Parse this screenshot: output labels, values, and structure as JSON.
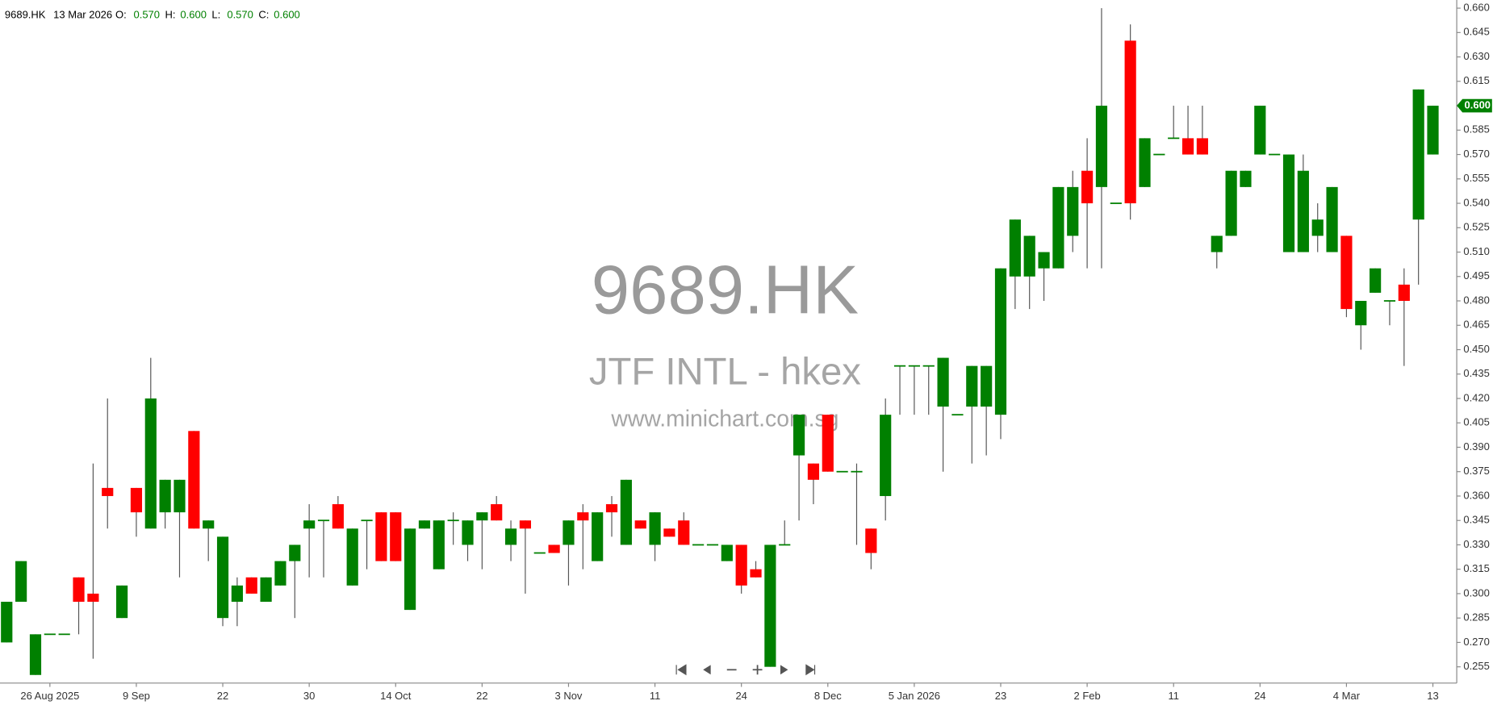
{
  "chart_data": {
    "type": "candlestick",
    "header": {
      "symbol": "9689.HK",
      "date": "13 Mar 2026",
      "fields": [
        {
          "label": "O:",
          "value": "0.570"
        },
        {
          "label": "H:",
          "value": "0.600"
        },
        {
          "label": "L:",
          "value": "0.570"
        },
        {
          "label": "C:",
          "value": "0.600"
        }
      ]
    },
    "watermark": {
      "symbol": "9689.HK",
      "name": "JTF INTL - hkex",
      "site": "www.minichart.com.sg"
    },
    "up_color": "#008000",
    "down_color": "#ff0000",
    "wick_color": "#555555",
    "grid": false,
    "ylim": [
      0.245,
      0.665
    ],
    "yticks": [
      {
        "value": 0.66,
        "label": "0.660"
      },
      0.645,
      {
        "value": 0.63,
        "label": "0.630"
      },
      0.615,
      {
        "value": 0.6,
        "label": "0.600"
      },
      0.585,
      {
        "value": 0.57,
        "label": "0.570"
      },
      0.555,
      {
        "value": 0.54,
        "label": "0.540"
      },
      0.525,
      {
        "value": 0.51,
        "label": "0.510"
      },
      0.495,
      {
        "value": 0.48,
        "label": "0.480"
      },
      0.465,
      {
        "value": 0.45,
        "label": "0.450"
      },
      0.435,
      {
        "value": 0.42,
        "label": "0.420"
      },
      0.405,
      {
        "value": 0.39,
        "label": "0.390"
      },
      0.375,
      {
        "value": 0.36,
        "label": "0.360"
      },
      0.345,
      {
        "value": 0.33,
        "label": "0.330"
      },
      0.315,
      {
        "value": 0.3,
        "label": "0.300"
      },
      0.285,
      {
        "value": 0.27,
        "label": "0.270"
      },
      0.255
    ],
    "price_tag": {
      "value": 0.6,
      "label": "0.600"
    },
    "categories": [
      null,
      null,
      null,
      "26 Aug 2025",
      null,
      null,
      null,
      null,
      null,
      "9 Sep",
      null,
      null,
      null,
      null,
      null,
      "22",
      null,
      null,
      null,
      null,
      null,
      "30",
      null,
      null,
      null,
      null,
      null,
      "14 Oct",
      null,
      null,
      null,
      null,
      null,
      "22",
      null,
      null,
      null,
      null,
      null,
      "3 Nov",
      null,
      null,
      null,
      null,
      null,
      "11",
      null,
      null,
      null,
      null,
      null,
      "24",
      null,
      null,
      null,
      null,
      null,
      "8 Dec",
      null,
      null,
      null,
      null,
      null,
      "5 Jan 2026",
      null,
      null,
      null,
      null,
      null,
      "23",
      null,
      null,
      null,
      null,
      null,
      "2 Feb",
      null,
      null,
      null,
      null,
      null,
      "11",
      null,
      null,
      null,
      null,
      null,
      "24",
      null,
      null,
      null,
      null,
      null,
      "4 Mar",
      null,
      null,
      null,
      null,
      null,
      "13"
    ],
    "open": [
      0.27,
      0.295,
      0.25,
      0.275,
      0.275,
      0.31,
      0.3,
      0.365,
      0.285,
      0.365,
      0.34,
      0.35,
      0.35,
      0.4,
      0.34,
      0.285,
      0.295,
      0.31,
      0.295,
      0.305,
      0.32,
      0.34,
      0.345,
      0.355,
      0.305,
      0.345,
      0.35,
      0.35,
      0.29,
      0.34,
      0.315,
      0.345,
      0.33,
      0.345,
      0.355,
      0.33,
      0.345,
      0.325,
      0.33,
      0.33,
      0.35,
      0.32,
      0.355,
      0.33,
      0.345,
      0.33,
      0.34,
      0.345,
      0.33,
      0.33,
      0.32,
      0.33,
      0.315,
      0.255,
      0.33,
      0.385,
      0.38,
      0.41,
      0.375,
      0.375,
      0.34,
      0.36,
      0.44,
      0.44,
      0.44,
      0.415,
      0.41,
      0.415,
      0.415,
      0.41,
      0.495,
      0.495,
      0.5,
      0.5,
      0.52,
      0.56,
      0.55,
      0.54,
      0.64,
      0.55,
      0.57,
      0.58,
      0.58,
      0.58,
      0.51,
      0.52,
      0.55,
      0.57,
      0.57,
      0.51,
      0.51,
      0.52,
      0.51,
      0.52,
      0.465,
      0.485,
      0.48,
      0.49,
      0.53,
      0.57
    ],
    "high": [
      0.295,
      0.32,
      0.275,
      0.275,
      0.275,
      0.31,
      0.38,
      0.42,
      0.305,
      0.365,
      0.445,
      0.37,
      0.37,
      0.4,
      0.345,
      0.335,
      0.31,
      0.31,
      0.31,
      0.32,
      0.33,
      0.355,
      0.345,
      0.36,
      0.34,
      0.345,
      0.35,
      0.35,
      0.34,
      0.345,
      0.345,
      0.35,
      0.345,
      0.35,
      0.36,
      0.345,
      0.345,
      0.325,
      0.33,
      0.345,
      0.355,
      0.35,
      0.36,
      0.37,
      0.345,
      0.35,
      0.34,
      0.35,
      0.33,
      0.33,
      0.33,
      0.33,
      0.32,
      0.33,
      0.345,
      0.41,
      0.38,
      0.41,
      0.375,
      0.38,
      0.34,
      0.42,
      0.44,
      0.44,
      0.44,
      0.445,
      0.41,
      0.44,
      0.44,
      0.5,
      0.53,
      0.52,
      0.51,
      0.55,
      0.56,
      0.58,
      0.66,
      0.54,
      0.65,
      0.58,
      0.57,
      0.6,
      0.6,
      0.6,
      0.52,
      0.56,
      0.56,
      0.6,
      0.57,
      0.57,
      0.57,
      0.54,
      0.55,
      0.52,
      0.48,
      0.5,
      0.48,
      0.5,
      0.61,
      0.6
    ],
    "low": [
      0.27,
      0.295,
      0.25,
      0.275,
      0.275,
      0.275,
      0.26,
      0.34,
      0.285,
      0.335,
      0.34,
      0.34,
      0.31,
      0.34,
      0.32,
      0.28,
      0.28,
      0.3,
      0.295,
      0.305,
      0.285,
      0.31,
      0.31,
      0.34,
      0.305,
      0.315,
      0.32,
      0.32,
      0.29,
      0.34,
      0.315,
      0.33,
      0.32,
      0.315,
      0.345,
      0.32,
      0.3,
      0.325,
      0.325,
      0.305,
      0.315,
      0.32,
      0.335,
      0.33,
      0.34,
      0.32,
      0.335,
      0.33,
      0.33,
      0.33,
      0.32,
      0.3,
      0.31,
      0.255,
      0.33,
      0.345,
      0.355,
      0.375,
      0.375,
      0.33,
      0.315,
      0.345,
      0.41,
      0.41,
      0.41,
      0.375,
      0.41,
      0.38,
      0.385,
      0.395,
      0.475,
      0.475,
      0.48,
      0.5,
      0.51,
      0.5,
      0.5,
      0.54,
      0.53,
      0.55,
      0.57,
      0.58,
      0.57,
      0.57,
      0.5,
      0.52,
      0.55,
      0.57,
      0.57,
      0.51,
      0.51,
      0.51,
      0.51,
      0.47,
      0.45,
      0.485,
      0.465,
      0.44,
      0.49,
      0.57
    ],
    "close": [
      0.295,
      0.32,
      0.275,
      0.275,
      0.275,
      0.295,
      0.295,
      0.36,
      0.305,
      0.35,
      0.42,
      0.37,
      0.37,
      0.34,
      0.345,
      0.335,
      0.305,
      0.3,
      0.31,
      0.32,
      0.33,
      0.345,
      0.345,
      0.34,
      0.34,
      0.345,
      0.32,
      0.32,
      0.34,
      0.345,
      0.345,
      0.345,
      0.345,
      0.35,
      0.345,
      0.34,
      0.34,
      0.325,
      0.325,
      0.345,
      0.345,
      0.35,
      0.35,
      0.37,
      0.34,
      0.35,
      0.335,
      0.33,
      0.33,
      0.33,
      0.33,
      0.305,
      0.31,
      0.33,
      0.33,
      0.41,
      0.37,
      0.375,
      0.375,
      0.375,
      0.325,
      0.41,
      0.44,
      0.44,
      0.44,
      0.445,
      0.41,
      0.44,
      0.44,
      0.5,
      0.53,
      0.52,
      0.51,
      0.55,
      0.55,
      0.54,
      0.6,
      0.54,
      0.54,
      0.58,
      0.57,
      0.58,
      0.57,
      0.57,
      0.52,
      0.56,
      0.56,
      0.6,
      0.57,
      0.57,
      0.56,
      0.53,
      0.55,
      0.475,
      0.48,
      0.5,
      0.48,
      0.48,
      0.61,
      0.6
    ]
  }
}
